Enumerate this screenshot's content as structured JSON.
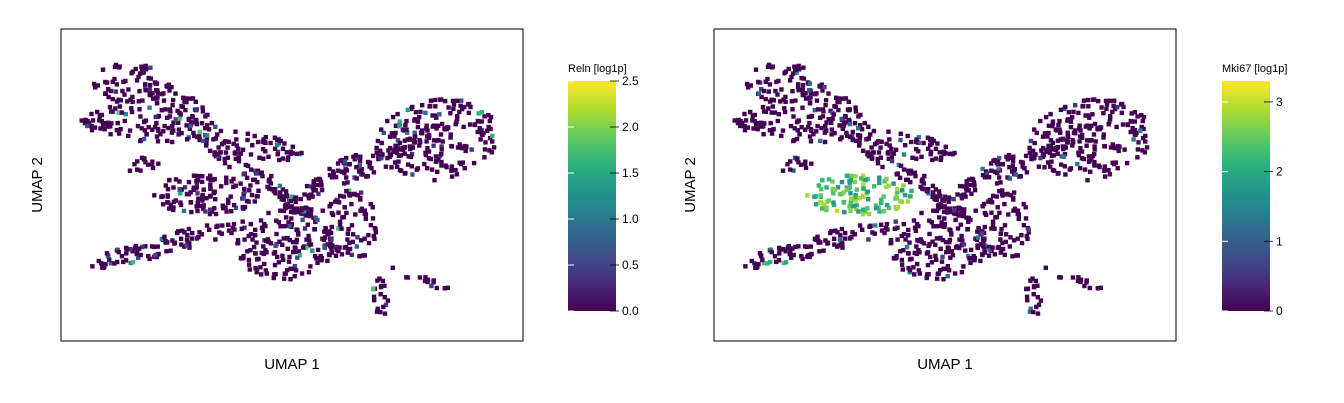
{
  "chart_data": [
    {
      "type": "scatter",
      "xlabel": "UMAP 1",
      "ylabel": "UMAP 2",
      "colorbar": {
        "title": "Reln [log1p]",
        "min": 0.0,
        "max": 2.5,
        "ticks": [
          "0.0",
          "0.5",
          "1.0",
          "1.5",
          "2.0",
          "2.5"
        ],
        "tick_values": [
          0.0,
          0.5,
          1.0,
          1.5,
          2.0,
          2.5
        ],
        "colormap": "viridis"
      },
      "grid": false
    },
    {
      "type": "scatter",
      "xlabel": "UMAP 1",
      "ylabel": "UMAP 2",
      "colorbar": {
        "title": "Mki67 [log1p]",
        "min": 0,
        "max": 3.3,
        "ticks": [
          "0",
          "1",
          "2",
          "3"
        ],
        "tick_values": [
          0,
          1,
          2,
          3
        ],
        "colormap": "viridis"
      },
      "grid": false
    }
  ],
  "colors": {
    "viridis_low": "#440154",
    "viridis_mid": "#21918c",
    "viridis_high": "#fde725",
    "frame": "#000000"
  }
}
